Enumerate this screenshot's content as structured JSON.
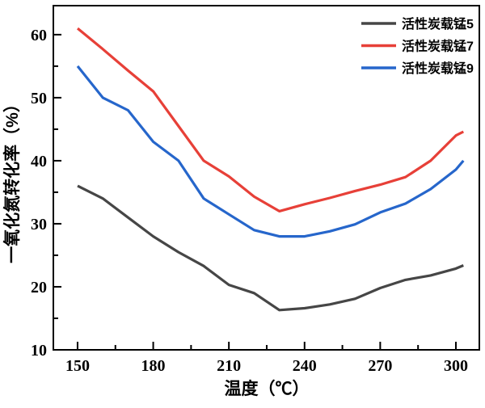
{
  "chart_data": {
    "type": "line",
    "title": "",
    "xlabel": "温度（℃）",
    "ylabel": "一氧化氮转化率（%）",
    "xlim": [
      140.4,
      309.3
    ],
    "ylim": [
      10,
      64.6
    ],
    "grid": false,
    "legend_position": "top-right-inside",
    "x_ticks_major": [
      150,
      180,
      210,
      240,
      270,
      300
    ],
    "x_ticks_minor": [
      165,
      195,
      225,
      255,
      285
    ],
    "y_ticks_major": [
      10,
      20,
      30,
      40,
      50,
      60
    ],
    "y_ticks_minor": [
      15,
      25,
      35,
      45,
      55
    ],
    "x": [
      150,
      160,
      170,
      180,
      190,
      200,
      210,
      220,
      230,
      240,
      250,
      260,
      270,
      280,
      290,
      300,
      303
    ],
    "series": [
      {
        "name": "活性炭载锰5",
        "color": "#464646",
        "values": [
          36,
          34,
          31,
          28,
          25.5,
          23.3,
          20.3,
          19,
          16.3,
          16.6,
          17.2,
          18.1,
          19.8,
          21.1,
          21.8,
          22.9,
          23.4
        ]
      },
      {
        "name": "活性炭载锰7",
        "color": "#e74038",
        "values": [
          61,
          57.7,
          54.3,
          51,
          45.5,
          40,
          37.5,
          34.3,
          32,
          33.1,
          34.1,
          35.2,
          36.2,
          37.4,
          40,
          44,
          44.6
        ]
      },
      {
        "name": "活性炭载锰9",
        "color": "#2666cb",
        "values": [
          55,
          50,
          48,
          43,
          40,
          34,
          31.5,
          29,
          28,
          28,
          28.8,
          29.9,
          31.8,
          33.2,
          35.5,
          38.6,
          40
        ]
      }
    ]
  }
}
